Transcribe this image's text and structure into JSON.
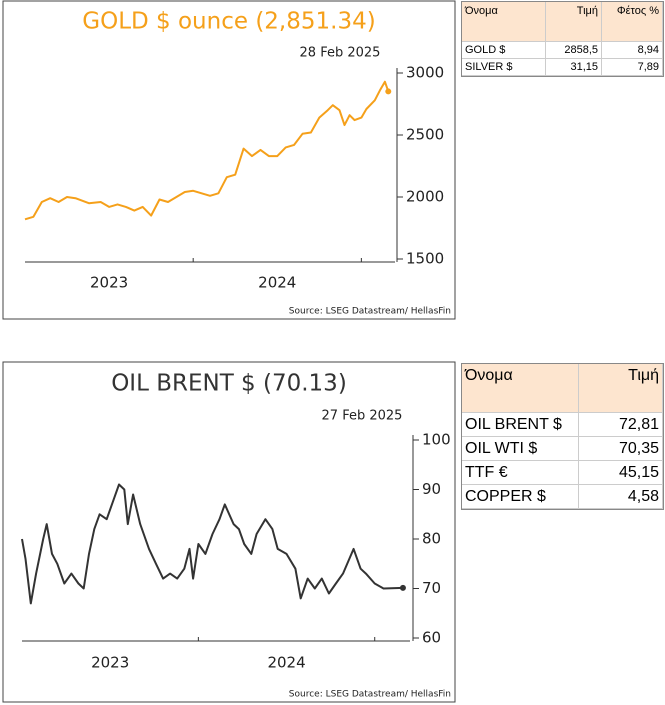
{
  "chart_data": [
    {
      "type": "line",
      "title": "GOLD $ ounce (2,851.34)",
      "annotation": "28 Feb 2025",
      "source": "Source: LSEG Datastream/ HellasFin",
      "x": [
        2023.0,
        2023.05,
        2023.1,
        2023.15,
        2023.2,
        2023.25,
        2023.3,
        2023.38,
        2023.45,
        2023.5,
        2023.55,
        2023.6,
        2023.65,
        2023.7,
        2023.75,
        2023.8,
        2023.85,
        2023.9,
        2023.95,
        2024.0,
        2024.05,
        2024.1,
        2024.15,
        2024.2,
        2024.25,
        2024.3,
        2024.35,
        2024.4,
        2024.45,
        2024.5,
        2024.55,
        2024.6,
        2024.65,
        2024.7,
        2024.75,
        2024.8,
        2024.83,
        2024.87,
        2024.9,
        2024.93,
        2024.96,
        2025.0,
        2025.03,
        2025.08,
        2025.11,
        2025.14,
        2025.16
      ],
      "series": [
        {
          "name": "GOLD $",
          "color": "#f5a01a",
          "values": [
            1820,
            1840,
            1960,
            1990,
            1960,
            2000,
            1990,
            1950,
            1960,
            1920,
            1940,
            1920,
            1890,
            1920,
            1850,
            1980,
            1960,
            2000,
            2040,
            2050,
            2030,
            2010,
            2030,
            2160,
            2180,
            2390,
            2330,
            2380,
            2330,
            2330,
            2400,
            2420,
            2510,
            2520,
            2640,
            2700,
            2740,
            2700,
            2580,
            2660,
            2620,
            2640,
            2710,
            2780,
            2860,
            2930,
            2851.34
          ]
        }
      ],
      "xlim": [
        2023.0,
        2025.2
      ],
      "xticks": [
        {
          "value": 2023.5,
          "label": "2023"
        },
        {
          "value": 2024.5,
          "label": "2024"
        }
      ],
      "xticks_minor": [
        2024,
        2025
      ],
      "ylim": [
        1500,
        3000
      ],
      "yticks": [
        1500,
        2000,
        2500,
        3000
      ],
      "end_marker": true,
      "title_color": "#f5a01a"
    },
    {
      "type": "line",
      "title": "OIL BRENT $ (70.13)",
      "annotation": "27 Feb 2025",
      "source": "Source: LSEG Datastream/ HellasFin",
      "x": [
        2023.0,
        2023.02,
        2023.05,
        2023.08,
        2023.12,
        2023.14,
        2023.17,
        2023.2,
        2023.24,
        2023.28,
        2023.32,
        2023.35,
        2023.38,
        2023.41,
        2023.44,
        2023.48,
        2023.52,
        2023.55,
        2023.58,
        2023.6,
        2023.63,
        2023.67,
        2023.72,
        2023.76,
        2023.8,
        2023.84,
        2023.88,
        2023.92,
        2023.95,
        2023.97,
        2024.0,
        2024.04,
        2024.08,
        2024.12,
        2024.15,
        2024.2,
        2024.23,
        2024.26,
        2024.3,
        2024.33,
        2024.38,
        2024.42,
        2024.45,
        2024.5,
        2024.55,
        2024.58,
        2024.62,
        2024.66,
        2024.7,
        2024.74,
        2024.78,
        2024.82,
        2024.88,
        2024.92,
        2024.95,
        2025.0,
        2025.05,
        2025.16
      ],
      "series": [
        {
          "name": "OIL BRENT $",
          "color": "#333333",
          "values": [
            80,
            76,
            67,
            73,
            80,
            83,
            77,
            75,
            71,
            73,
            71,
            70,
            77,
            82,
            85,
            84,
            88,
            91,
            90,
            83,
            89,
            83,
            78,
            75,
            72,
            73,
            72,
            74,
            78,
            72,
            79,
            77,
            81,
            84,
            87,
            83,
            82,
            79,
            77,
            81,
            84,
            82,
            78,
            77,
            74,
            68,
            72,
            70,
            72,
            69,
            71,
            73,
            78,
            74,
            73,
            71,
            70,
            70.13
          ]
        }
      ],
      "xlim": [
        2023.0,
        2025.2
      ],
      "xticks": [
        {
          "value": 2023.5,
          "label": "2023"
        },
        {
          "value": 2024.5,
          "label": "2024"
        }
      ],
      "xticks_minor": [
        2024,
        2025
      ],
      "ylim": [
        60,
        100
      ],
      "yticks": [
        60,
        70,
        80,
        90,
        100
      ],
      "end_marker": true,
      "title_color": "#333333"
    }
  ],
  "tables": [
    {
      "header": [
        "Όνομα",
        "Τιμή",
        "Φέτος %"
      ],
      "rows": [
        [
          "GOLD $",
          "2858,5",
          "8,94"
        ],
        [
          "SILVER $",
          "31,15",
          "7,89"
        ]
      ]
    },
    {
      "header": [
        "Όνομα",
        "Τιμή"
      ],
      "rows": [
        [
          "OIL BRENT $",
          "72,81"
        ],
        [
          "OIL WTI $",
          "70,35"
        ],
        [
          "TTF €",
          "45,15"
        ],
        [
          "COPPER $",
          "4,58"
        ]
      ]
    }
  ]
}
